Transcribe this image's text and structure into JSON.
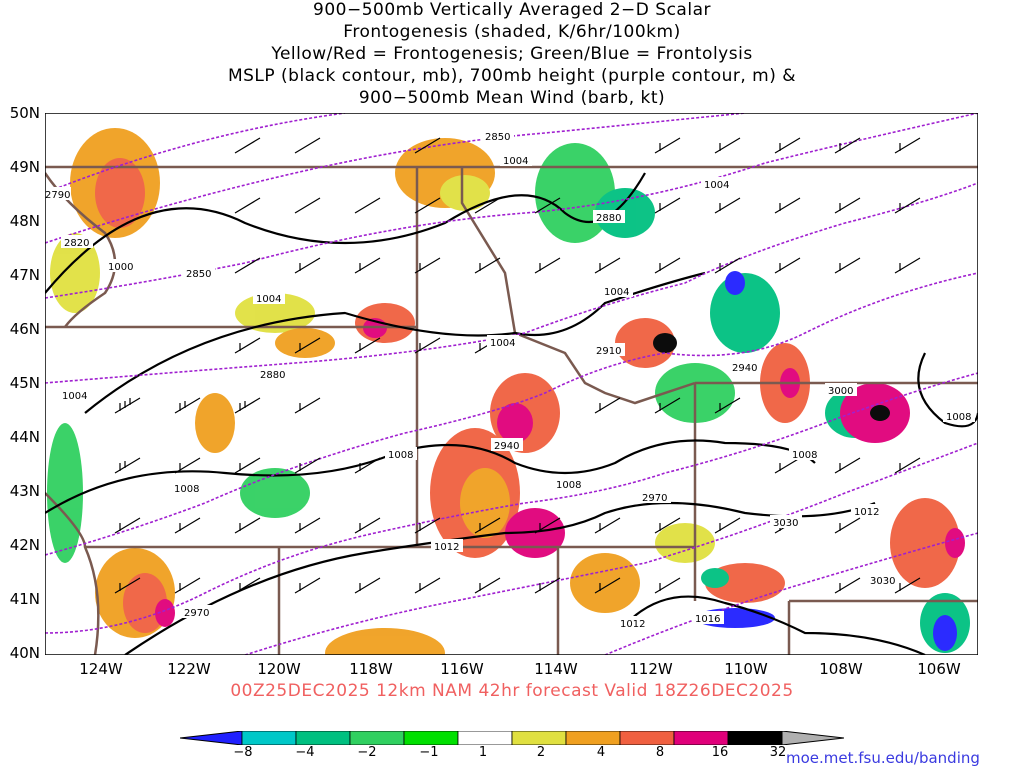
{
  "title_lines": [
    "900−500mb Vertically Averaged 2−D Scalar",
    "Frontogenesis (shaded, K/6hr/100km)",
    "Yellow/Red = Frontogenesis;  Green/Blue = Frontolysis",
    "MSLP (black contour, mb), 700mb height (purple contour, m) &",
    "900−500mb Mean Wind (barb, kt)"
  ],
  "lat_labels": [
    "50N",
    "49N",
    "48N",
    "47N",
    "46N",
    "45N",
    "44N",
    "43N",
    "42N",
    "41N",
    "40N"
  ],
  "lon_labels": [
    "124W",
    "122W",
    "120W",
    "118W",
    "116W",
    "114W",
    "112W",
    "110W",
    "108W",
    "106W"
  ],
  "valid_text": "00Z25DEC2025 12km NAM 42hr forecast Valid 18Z26DEC2025",
  "colorbar": {
    "labels": [
      "−8",
      "−4",
      "−2",
      "−1",
      "1",
      "2",
      "4",
      "8",
      "16",
      "32"
    ],
    "colors": [
      "#2020ff",
      "#00c8c8",
      "#00c080",
      "#30d060",
      "#00e000",
      "#ffffff",
      "#e0e040",
      "#f0a020",
      "#f06040",
      "#e0007a",
      "#000000",
      "#b0b0b0"
    ]
  },
  "credit": "moe.met.fsu.edu/banding",
  "contour_labels": {
    "mslp": [
      "1004",
      "1000",
      "1004",
      "1004",
      "1004",
      "1004",
      "1004",
      "1008",
      "1008",
      "1008",
      "1008",
      "1008",
      "1012",
      "1012",
      "1012",
      "1016"
    ],
    "height": [
      "2790",
      "2820",
      "2850",
      "2850",
      "2880",
      "2880",
      "2910",
      "2940",
      "2940",
      "2970",
      "2970",
      "3000",
      "3030"
    ]
  },
  "colors": {
    "mslp": "#000000",
    "height": "#a020d0",
    "borders": "#7a5a50",
    "title": "#000000",
    "valid": "#f06060"
  }
}
